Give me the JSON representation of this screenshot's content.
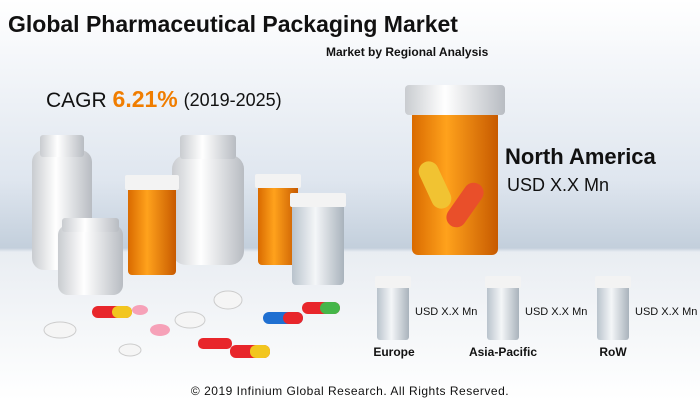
{
  "header": {
    "title": "Global Pharmaceutical Packaging Market",
    "subtitle": "Market by Regional Analysis"
  },
  "cagr": {
    "label": "CAGR",
    "value": "6.21%",
    "period": "(2019-2025)"
  },
  "featured_region": {
    "name": "North America",
    "value": "USD X.X Mn"
  },
  "regions": [
    {
      "name": "Europe",
      "value": "USD X.X Mn"
    },
    {
      "name": "Asia-Pacific",
      "value": "USD X.X Mn"
    },
    {
      "name": "RoW",
      "value": "USD X.X Mn"
    }
  ],
  "footer": "© 2019 Infinium Global Research. All Rights Reserved."
}
